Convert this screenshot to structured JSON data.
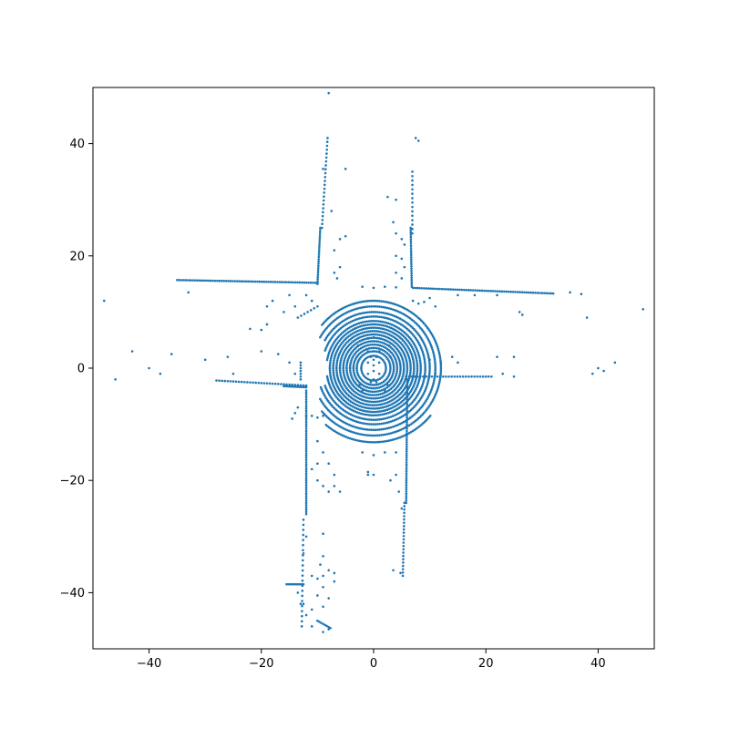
{
  "chart_data": {
    "type": "scatter",
    "title": "",
    "xlabel": "",
    "ylabel": "",
    "xlim": [
      -50,
      50
    ],
    "ylim": [
      -50,
      50
    ],
    "x_ticks": [
      -40,
      -20,
      0,
      20,
      40
    ],
    "y_ticks": [
      -40,
      -20,
      0,
      20,
      40
    ],
    "x_tick_labels": [
      "−40",
      "−20",
      "0",
      "20",
      "40"
    ],
    "y_tick_labels": [
      "−40",
      "−20",
      "0",
      "20",
      "40"
    ],
    "grid": false,
    "marker_color": "#1f77b4",
    "series": [
      {
        "values_description_free": true,
        "segments": [
          {
            "from": [
              -35,
              15.7
            ],
            "to": [
              -10,
              15.2
            ],
            "step": 0.4
          },
          {
            "from": [
              7,
              14.3
            ],
            "to": [
              32,
              13.3
            ],
            "step": 0.4
          },
          {
            "from": [
              -10,
              15
            ],
            "to": [
              -9.5,
              25
            ],
            "step": 0.4
          },
          {
            "from": [
              -9.2,
              25
            ],
            "to": [
              -8.2,
              41
            ],
            "step": 0.7
          },
          {
            "from": [
              6.8,
              14.5
            ],
            "to": [
              6.6,
              25
            ],
            "step": 0.4
          },
          {
            "from": [
              6.9,
              24
            ],
            "to": [
              6.9,
              35
            ],
            "step": 0.8
          },
          {
            "from": [
              -28,
              -2.2
            ],
            "to": [
              -12,
              -3.1
            ],
            "step": 0.5
          },
          {
            "from": [
              -16,
              -3.2
            ],
            "to": [
              -12,
              -3.4
            ],
            "step": 0.3
          },
          {
            "from": [
              5.8,
              -1.5
            ],
            "to": [
              21,
              -1.5
            ],
            "step": 0.5
          },
          {
            "from": [
              -12,
              -4
            ],
            "to": [
              -12,
              -26
            ],
            "step": 0.4
          },
          {
            "from": [
              -12.5,
              -27
            ],
            "to": [
              -12.8,
              -46
            ],
            "step": 0.9
          },
          {
            "from": [
              6,
              -2
            ],
            "to": [
              5.8,
              -24
            ],
            "step": 0.4
          },
          {
            "from": [
              5.5,
              -24
            ],
            "to": [
              5.2,
              -37
            ],
            "step": 0.6
          },
          {
            "from": [
              -15.5,
              -38.5
            ],
            "to": [
              -12.5,
              -38.5
            ],
            "step": 0.3
          },
          {
            "from": [
              -10,
              -45
            ],
            "to": [
              -7.7,
              -46.3
            ],
            "step": 0.4
          },
          {
            "from": [
              -13,
              -2
            ],
            "to": [
              -13,
              1
            ],
            "step": 0.5
          },
          {
            "from": [
              -13.5,
              9
            ],
            "to": [
              -10,
              11
            ],
            "step": 0.7
          }
        ],
        "rings": [
          {
            "r": 2.2,
            "from_deg": 0,
            "to_deg": 360
          },
          {
            "r": 3.0,
            "from_deg": 0,
            "to_deg": 360
          },
          {
            "r": 3.6,
            "from_deg": 0,
            "to_deg": 360
          },
          {
            "r": 4.2,
            "from_deg": 0,
            "to_deg": 360
          },
          {
            "r": 4.8,
            "from_deg": 0,
            "to_deg": 360
          },
          {
            "r": 5.4,
            "from_deg": 0,
            "to_deg": 360
          },
          {
            "r": 6.0,
            "from_deg": 0,
            "to_deg": 360
          },
          {
            "r": 6.6,
            "from_deg": 0,
            "to_deg": 360
          },
          {
            "r": 7.2,
            "from_deg": 0,
            "to_deg": 360
          },
          {
            "r": 7.8,
            "from_deg": 0,
            "to_deg": 360
          },
          {
            "r": 8.4,
            "from_deg": 10,
            "to_deg": 350
          },
          {
            "r": 9.2,
            "from_deg": 20,
            "to_deg": 340
          },
          {
            "r": 10.0,
            "from_deg": 20,
            "to_deg": 330
          },
          {
            "r": 11.0,
            "from_deg": 30,
            "to_deg": 330
          },
          {
            "r": 12.0,
            "from_deg": 40,
            "to_deg": 320
          },
          {
            "r": 13.2,
            "from_deg": 50,
            "to_deg": 140
          }
        ],
        "points": [
          [
            -8,
            49
          ],
          [
            -48,
            12
          ],
          [
            48,
            10.5
          ],
          [
            -46,
            -2
          ],
          [
            -43,
            3
          ],
          [
            -40,
            0
          ],
          [
            -38,
            -1
          ],
          [
            -36,
            2.5
          ],
          [
            -33,
            13.5
          ],
          [
            -30,
            1.5
          ],
          [
            -26,
            2
          ],
          [
            -25,
            -1
          ],
          [
            -22,
            7
          ],
          [
            -20,
            6.8
          ],
          [
            -19,
            7.8
          ],
          [
            -17,
            2.5
          ],
          [
            -20,
            3
          ],
          [
            -15,
            1
          ],
          [
            -14,
            -1
          ],
          [
            -18,
            12
          ],
          [
            -19,
            11
          ],
          [
            -16,
            10
          ],
          [
            -15,
            13
          ],
          [
            -14,
            11
          ],
          [
            -12,
            13
          ],
          [
            -11,
            12
          ],
          [
            -9,
            35.5
          ],
          [
            -7.5,
            28
          ],
          [
            -5,
            35.5
          ],
          [
            -6,
            23
          ],
          [
            -5,
            23.5
          ],
          [
            -7,
            21
          ],
          [
            -6,
            18
          ],
          [
            -7,
            17
          ],
          [
            -6.5,
            16
          ],
          [
            2.5,
            30.5
          ],
          [
            4,
            30
          ],
          [
            3.5,
            26
          ],
          [
            4,
            24
          ],
          [
            5,
            23
          ],
          [
            5.5,
            22
          ],
          [
            4,
            20
          ],
          [
            5,
            19.5
          ],
          [
            5.5,
            18
          ],
          [
            4,
            17
          ],
          [
            5,
            16
          ],
          [
            7.5,
            41
          ],
          [
            8,
            40.5
          ],
          [
            -2,
            14.5
          ],
          [
            0,
            14.3
          ],
          [
            2,
            14.5
          ],
          [
            4,
            14.4
          ],
          [
            7,
            12
          ],
          [
            8,
            11.5
          ],
          [
            9,
            11.8
          ],
          [
            10,
            12.5
          ],
          [
            11,
            11
          ],
          [
            15,
            13
          ],
          [
            18,
            13
          ],
          [
            22,
            13
          ],
          [
            26,
            10
          ],
          [
            26.5,
            9.5
          ],
          [
            35,
            13.5
          ],
          [
            37,
            13.2
          ],
          [
            38,
            9
          ],
          [
            40,
            0
          ],
          [
            41,
            -0.5
          ],
          [
            39,
            -1
          ],
          [
            43,
            1
          ],
          [
            25,
            -1.5
          ],
          [
            25,
            2
          ],
          [
            23,
            -1
          ],
          [
            22,
            2
          ],
          [
            20,
            -1.5
          ],
          [
            15,
            1
          ],
          [
            14,
            2
          ],
          [
            12,
            1
          ],
          [
            11,
            -1
          ],
          [
            10,
            1.5
          ],
          [
            -2,
            -15
          ],
          [
            0,
            -15.5
          ],
          [
            2,
            -15
          ],
          [
            4,
            -15
          ],
          [
            -10,
            -13
          ],
          [
            -9,
            -15
          ],
          [
            -10,
            -17
          ],
          [
            -11,
            -18
          ],
          [
            -10,
            -20
          ],
          [
            -9,
            -21
          ],
          [
            -8,
            -22
          ],
          [
            -7,
            -21
          ],
          [
            -6,
            -22
          ],
          [
            -7,
            -19
          ],
          [
            -8,
            -17
          ],
          [
            -1,
            -18.5
          ],
          [
            -1,
            -19
          ],
          [
            0,
            -19
          ],
          [
            3,
            -20
          ],
          [
            4,
            -19
          ],
          [
            4.5,
            -22
          ],
          [
            5,
            -25
          ],
          [
            3.5,
            -36
          ],
          [
            4.8,
            -36.5
          ],
          [
            -12,
            -30
          ],
          [
            -12.5,
            -33
          ],
          [
            -9,
            -29.5
          ],
          [
            -9,
            -33.5
          ],
          [
            -9.5,
            -35
          ],
          [
            -9,
            -37
          ],
          [
            -10,
            -37.5
          ],
          [
            -11,
            -37
          ],
          [
            -8,
            -36
          ],
          [
            -7,
            -36.5
          ],
          [
            -7,
            -38
          ],
          [
            -9,
            -39
          ],
          [
            -8,
            -41
          ],
          [
            -9,
            -42.5
          ],
          [
            -13,
            -42
          ],
          [
            -13.5,
            -40
          ],
          [
            -12,
            -44
          ],
          [
            -11,
            -46
          ],
          [
            -9,
            -47
          ],
          [
            -8,
            -46.5
          ],
          [
            -11,
            -43
          ],
          [
            -12.5,
            -42
          ],
          [
            -10,
            -40.5
          ],
          [
            -1,
            -1
          ],
          [
            1,
            -1
          ],
          [
            -1,
            1
          ],
          [
            1,
            1
          ],
          [
            -0.5,
            2
          ],
          [
            0.5,
            2
          ],
          [
            0,
            3
          ],
          [
            -1,
            3
          ],
          [
            1,
            3
          ],
          [
            0,
            -2
          ],
          [
            0,
            0.5
          ],
          [
            0,
            -0.5
          ],
          [
            -0.5,
            -2.5
          ],
          [
            0.5,
            -2.5
          ],
          [
            0,
            1.5
          ],
          [
            -2,
            -4
          ],
          [
            2,
            -4
          ],
          [
            -2.5,
            -3
          ],
          [
            2.5,
            -3
          ],
          [
            -3,
            2
          ],
          [
            3,
            2
          ],
          [
            -2.8,
            4
          ],
          [
            2.8,
            4
          ],
          [
            -2,
            5
          ],
          [
            2,
            5
          ],
          [
            0,
            5.5
          ],
          [
            -1,
            5.3
          ],
          [
            1,
            5.3
          ],
          [
            -14,
            -8
          ],
          [
            -13.5,
            -7
          ],
          [
            -14.5,
            -9
          ],
          [
            -12,
            -8.5
          ],
          [
            -11,
            -8.5
          ],
          [
            -10,
            -8.8
          ],
          [
            -9,
            -8.5
          ]
        ]
      }
    ]
  }
}
